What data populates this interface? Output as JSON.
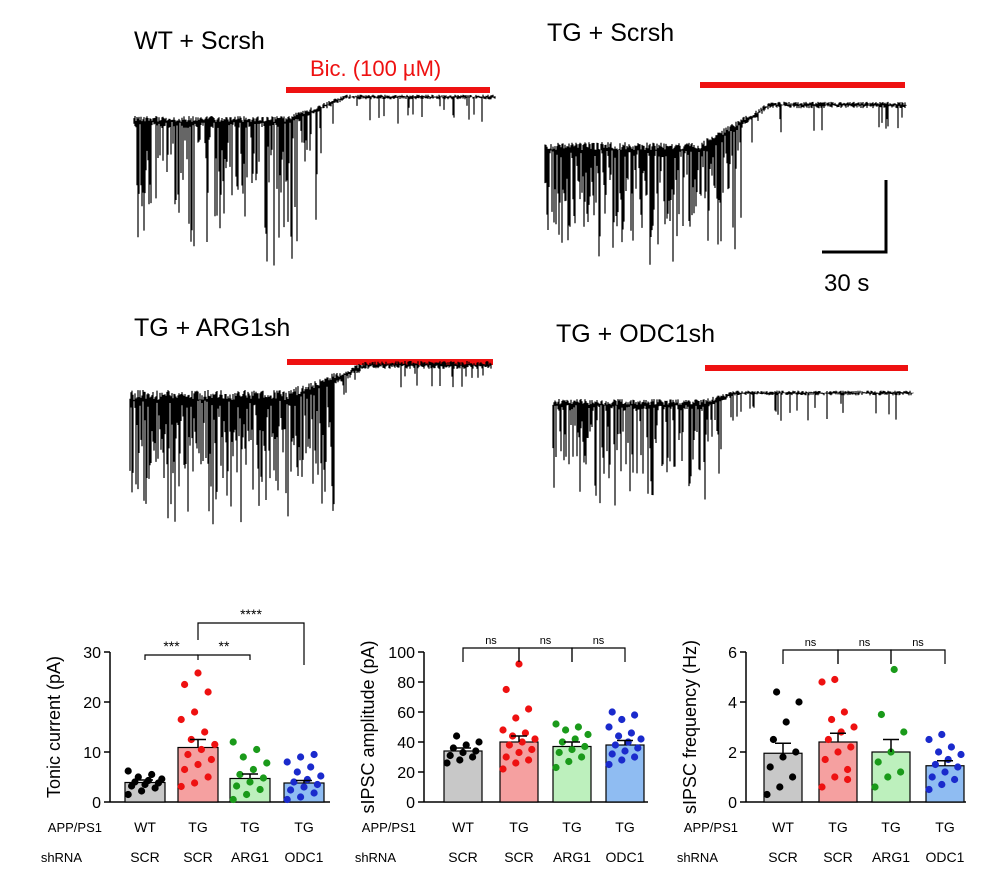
{
  "traces": [
    {
      "title": "WT + Scrsh",
      "drug_label": "Bic. (100 µM)",
      "level_change": 0.25
    },
    {
      "title": "TG + Scrsh",
      "level_change": 0.45
    },
    {
      "title": "TG + ARG1sh",
      "level_change": 0.35
    },
    {
      "title": "TG + ODC1sh",
      "level_change": 0.12
    }
  ],
  "scale_bar": {
    "time_label": "30 s"
  },
  "row_labels": {
    "genotype": "APP/PS1",
    "shrna": "shRNA"
  },
  "chart_data": [
    {
      "type": "bar",
      "ylabel": "Tonic current (pA)",
      "ylim": [
        0,
        30
      ],
      "yticks": [
        0,
        10,
        20,
        30
      ],
      "categories": [
        {
          "genotype": "WT",
          "shrna": "SCR",
          "color": "#c8c8c8",
          "dot": "#000000"
        },
        {
          "genotype": "TG",
          "shrna": "SCR",
          "color": "#f5a0a0",
          "dot": "#ee1111"
        },
        {
          "genotype": "TG",
          "shrna": "ARG1",
          "color": "#bdf0bd",
          "dot": "#1a9a1a"
        },
        {
          "genotype": "TG",
          "shrna": "ODC1",
          "color": "#8fbcf2",
          "dot": "#1a2acc"
        }
      ],
      "values": [
        3.9,
        10.9,
        4.7,
        3.8
      ],
      "sem": [
        0.5,
        1.6,
        0.9,
        0.5
      ],
      "points": [
        [
          1.5,
          2.2,
          2.8,
          3.2,
          3.5,
          3.8,
          4.0,
          4.3,
          4.6,
          5.0,
          5.5,
          6.2
        ],
        [
          3.1,
          3.8,
          5.0,
          6.5,
          7.5,
          8.5,
          9.5,
          10.5,
          11.5,
          12.5,
          14.0,
          16.5,
          18.0,
          22.0,
          23.5,
          25.8
        ],
        [
          0.5,
          1.5,
          2.5,
          3.2,
          4.0,
          4.8,
          5.5,
          6.5,
          7.8,
          9.0,
          10.5,
          12.0
        ],
        [
          0.5,
          1.0,
          1.8,
          2.4,
          3.0,
          3.5,
          4.0,
          4.5,
          5.2,
          6.0,
          7.0,
          8.0,
          9.0,
          9.5
        ]
      ],
      "comparisons": [
        {
          "from": 0,
          "to": 1,
          "label": "***"
        },
        {
          "from": 1,
          "to": 2,
          "label": "**"
        },
        {
          "from": 1,
          "to": 3,
          "label": "****"
        }
      ]
    },
    {
      "type": "bar",
      "ylabel": "sIPSC amplitude (pA)",
      "ylim": [
        0,
        100
      ],
      "yticks": [
        0,
        20,
        40,
        60,
        80,
        100
      ],
      "categories": [
        {
          "genotype": "WT",
          "shrna": "SCR",
          "color": "#c8c8c8",
          "dot": "#000000"
        },
        {
          "genotype": "TG",
          "shrna": "SCR",
          "color": "#f5a0a0",
          "dot": "#ee1111"
        },
        {
          "genotype": "TG",
          "shrna": "ARG1",
          "color": "#bdf0bd",
          "dot": "#1a9a1a"
        },
        {
          "genotype": "TG",
          "shrna": "ODC1",
          "color": "#8fbcf2",
          "dot": "#1a2acc"
        }
      ],
      "values": [
        34,
        40,
        37,
        38
      ],
      "sem": [
        2,
        4,
        3,
        3
      ],
      "points": [
        [
          26,
          28,
          30,
          31,
          33,
          34,
          36,
          38,
          40,
          44
        ],
        [
          22,
          26,
          28,
          30,
          33,
          35,
          38,
          40,
          42,
          44,
          46,
          48,
          56,
          62,
          75,
          92
        ],
        [
          23,
          27,
          30,
          33,
          35,
          37,
          40,
          42,
          45,
          48,
          50,
          52
        ],
        [
          25,
          28,
          30,
          32,
          34,
          36,
          38,
          40,
          42,
          44,
          46,
          50,
          55,
          58,
          60
        ]
      ],
      "comparisons": [
        {
          "from": 0,
          "to": 1,
          "label": "ns"
        },
        {
          "from": 1,
          "to": 2,
          "label": "ns"
        },
        {
          "from": 2,
          "to": 3,
          "label": "ns"
        }
      ]
    },
    {
      "type": "bar",
      "ylabel": "sIPSC frequency (Hz)",
      "ylim": [
        0,
        6
      ],
      "yticks": [
        0,
        2,
        4,
        6
      ],
      "categories": [
        {
          "genotype": "WT",
          "shrna": "SCR",
          "color": "#c8c8c8",
          "dot": "#000000"
        },
        {
          "genotype": "TG",
          "shrna": "SCR",
          "color": "#f5a0a0",
          "dot": "#ee1111"
        },
        {
          "genotype": "TG",
          "shrna": "ARG1",
          "color": "#bdf0bd",
          "dot": "#1a9a1a"
        },
        {
          "genotype": "TG",
          "shrna": "ODC1",
          "color": "#8fbcf2",
          "dot": "#1a2acc"
        }
      ],
      "values": [
        1.95,
        2.4,
        2.0,
        1.45
      ],
      "sem": [
        0.4,
        0.35,
        0.5,
        0.2
      ],
      "points": [
        [
          0.3,
          0.6,
          1.0,
          1.4,
          1.8,
          2.0,
          2.5,
          3.2,
          4.0,
          4.4
        ],
        [
          0.6,
          1.0,
          1.3,
          1.7,
          2.0,
          2.2,
          2.5,
          2.8,
          3.0,
          3.3,
          3.6,
          4.8,
          4.9,
          0.9
        ],
        [
          0.6,
          1.0,
          1.2,
          1.6,
          2.0,
          2.8,
          3.5,
          5.3
        ],
        [
          0.5,
          0.7,
          0.9,
          1.0,
          1.2,
          1.4,
          1.5,
          1.7,
          1.9,
          2.0,
          2.2,
          2.5,
          2.7
        ]
      ],
      "comparisons": [
        {
          "from": 0,
          "to": 1,
          "label": "ns"
        },
        {
          "from": 1,
          "to": 2,
          "label": "ns"
        },
        {
          "from": 2,
          "to": 3,
          "label": "ns"
        }
      ]
    }
  ]
}
